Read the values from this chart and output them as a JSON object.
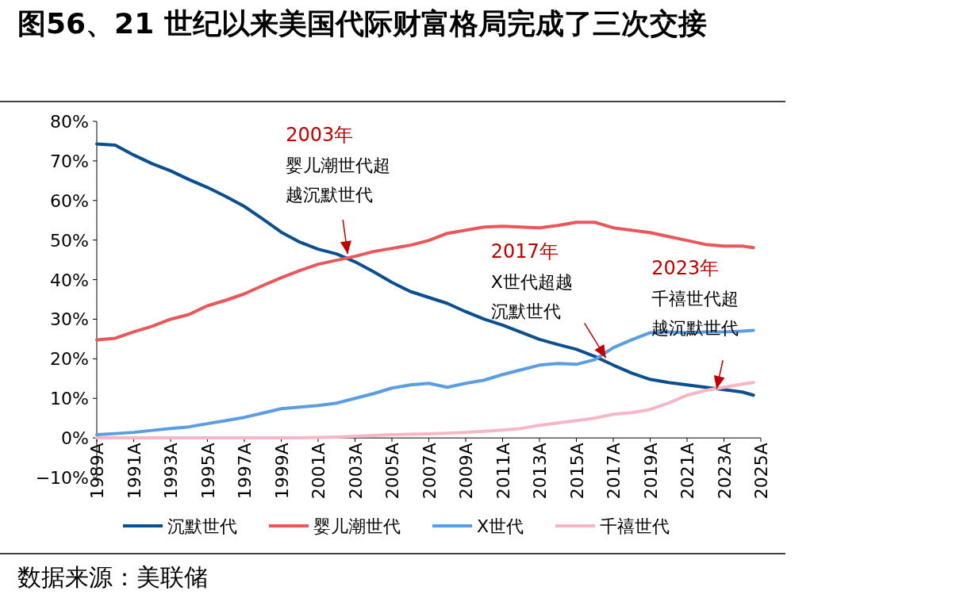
{
  "chart_data": {
    "type": "line",
    "title": "图56、21 世纪以来美国代际财富格局完成了三次交接",
    "xlim": [
      1989,
      2025
    ],
    "xticks": [
      {
        "value": 1989,
        "label": "1989A"
      },
      {
        "value": 1991,
        "label": "1991A"
      },
      {
        "value": 1993,
        "label": "1993A"
      },
      {
        "value": 1995,
        "label": "1995A"
      },
      {
        "value": 1997,
        "label": "1997A"
      },
      {
        "value": 1999,
        "label": "1999A"
      },
      {
        "value": 2001,
        "label": "2001A"
      },
      {
        "value": 2003,
        "label": "2003A"
      },
      {
        "value": 2005,
        "label": "2005A"
      },
      {
        "value": 2007,
        "label": "2007A"
      },
      {
        "value": 2009,
        "label": "2009A"
      },
      {
        "value": 2011,
        "label": "2011A"
      },
      {
        "value": 2013,
        "label": "2013A"
      },
      {
        "value": 2015,
        "label": "2015A"
      },
      {
        "value": 2017,
        "label": "2017A"
      },
      {
        "value": 2019,
        "label": "2019A"
      },
      {
        "value": 2021,
        "label": "2021A"
      },
      {
        "value": 2023,
        "label": "2023A"
      },
      {
        "value": 2025,
        "label": "2025A"
      }
    ],
    "ylim": [
      -10,
      80
    ],
    "yticks": [
      {
        "value": -10,
        "label": "−10%"
      },
      {
        "value": 0,
        "label": "0%"
      },
      {
        "value": 10,
        "label": "10%"
      },
      {
        "value": 20,
        "label": "20%"
      },
      {
        "value": 30,
        "label": "30%"
      },
      {
        "value": 40,
        "label": "40%"
      },
      {
        "value": 50,
        "label": "50%"
      },
      {
        "value": 60,
        "label": "60%"
      },
      {
        "value": 70,
        "label": "70%"
      },
      {
        "value": 80,
        "label": "80%"
      }
    ],
    "x": [
      1989,
      1990,
      1991,
      1992,
      1993,
      1994,
      1995,
      1996,
      1997,
      1998,
      1999,
      2000,
      2001,
      2002,
      2003,
      2004,
      2005,
      2006,
      2007,
      2008,
      2009,
      2010,
      2011,
      2012,
      2013,
      2014,
      2015,
      2016,
      2017,
      2018,
      2019,
      2020,
      2021,
      2022,
      2023,
      2024,
      2024.6
    ],
    "series": [
      {
        "name": "沉默世代",
        "color": "#0b4f8f",
        "values": [
          74.3,
          74,
          71.5,
          69.3,
          67.5,
          65.3,
          63.3,
          61,
          58.5,
          55.3,
          52,
          49.5,
          47.7,
          46.5,
          44.5,
          42,
          39.3,
          37,
          35.5,
          34,
          31.9,
          30,
          28.5,
          26.7,
          24.9,
          23.6,
          22.4,
          20.6,
          18.4,
          16.4,
          14.8,
          14,
          13.4,
          12.8,
          12.2,
          11.6,
          10.8
        ]
      },
      {
        "name": "婴儿潮世代",
        "color": "#e8585a",
        "values": [
          24.8,
          25.2,
          26.8,
          28.2,
          30,
          31.2,
          33.4,
          34.8,
          36.4,
          38.5,
          40.5,
          42.3,
          43.9,
          44.9,
          45.9,
          47.1,
          47.9,
          48.7,
          49.9,
          51.7,
          52.5,
          53.3,
          53.5,
          53.3,
          53.1,
          53.7,
          54.5,
          54.5,
          53.1,
          52.5,
          51.9,
          50.9,
          49.9,
          48.9,
          48.5,
          48.5,
          48.1
        ]
      },
      {
        "name": "X世代",
        "color": "#5b9de0",
        "values": [
          0.8,
          1.1,
          1.4,
          1.9,
          2.4,
          2.8,
          3.6,
          4.4,
          5.2,
          6.3,
          7.4,
          7.8,
          8.2,
          8.8,
          10,
          11.2,
          12.6,
          13.4,
          13.8,
          12.8,
          13.8,
          14.6,
          16,
          17.2,
          18.4,
          18.8,
          18.6,
          19.8,
          22.8,
          24.8,
          26.6,
          26.8,
          26.6,
          26.8,
          26.8,
          27,
          27.2
        ]
      },
      {
        "name": "千禧世代",
        "color": "#f7b6c4",
        "values": [
          0,
          0,
          0,
          0,
          0,
          0,
          0,
          0,
          0,
          0,
          0,
          0,
          0.1,
          0.2,
          0.4,
          0.6,
          0.8,
          0.9,
          1,
          1.2,
          1.4,
          1.7,
          2,
          2.4,
          3.2,
          3.8,
          4.4,
          5,
          6,
          6.4,
          7.2,
          8.8,
          10.8,
          12,
          12.8,
          13.6,
          14
        ]
      }
    ],
    "legend": "bottom",
    "grid": false,
    "annotations": [
      "2003年",
      {
        "text": "婴儿潮世代超越沉默世代",
        "x": 2002.6,
        "y": 46.5
      },
      "2017年",
      {
        "text": "X世代超越沉默世代",
        "x": 2016.6,
        "y": 20.2
      },
      "2023年",
      {
        "text": "千禧世代超越沉默世代",
        "x": 2022.6,
        "y": 12.4
      },
      "数据来源：美联储"
    ]
  }
}
